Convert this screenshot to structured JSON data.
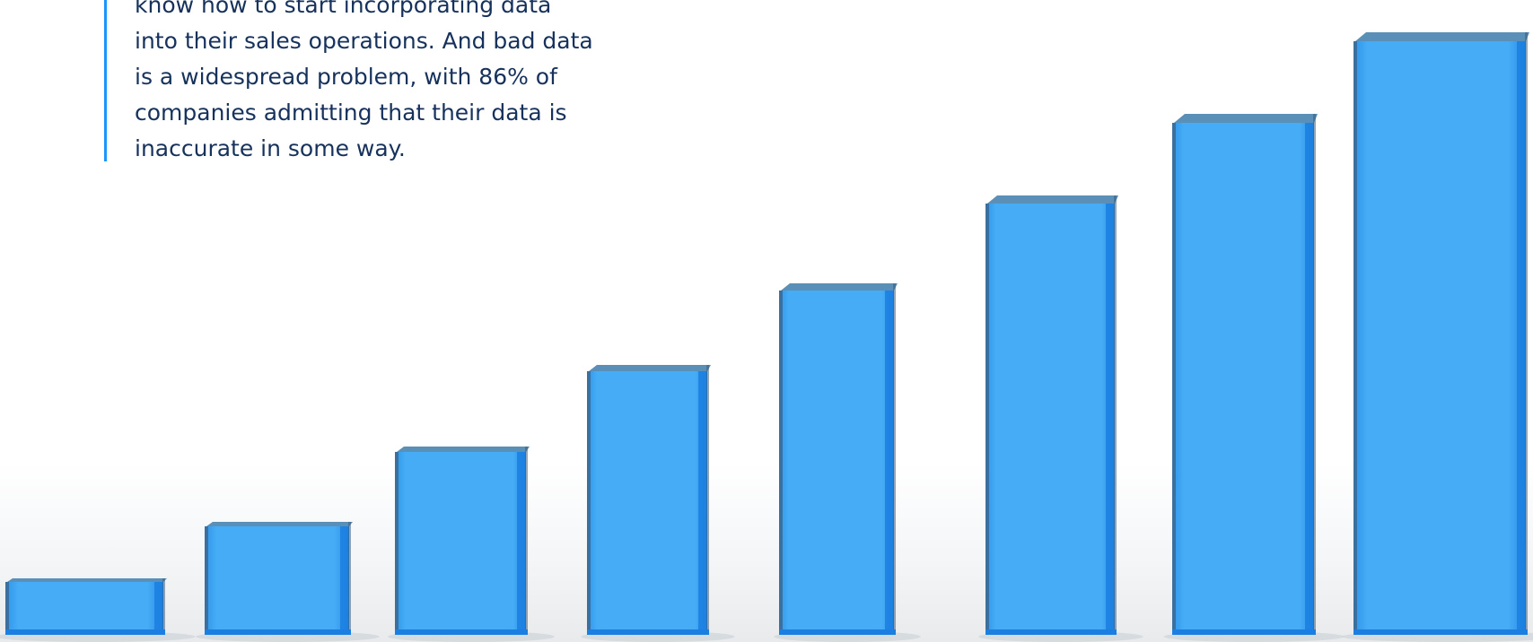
{
  "quote": {
    "lines": [
      "know how to start incorporating data",
      "into their sales operations. And bad data",
      "is a widespread problem, with 86% of",
      "companies admitting that their data is",
      "inaccurate in some way."
    ]
  },
  "illustration": {
    "description_icon": "rising-glass-bars-icon",
    "bar_levels": [
      0.09,
      0.18,
      0.3,
      0.43,
      0.56,
      0.7,
      0.83,
      0.96
    ],
    "colors": {
      "front": "#45acf5",
      "side": "#1a7fe0",
      "edge": "#3d5f80",
      "top": "#5a8fb8",
      "quote_bar": "#1b96ff",
      "text": "#16325c"
    }
  }
}
